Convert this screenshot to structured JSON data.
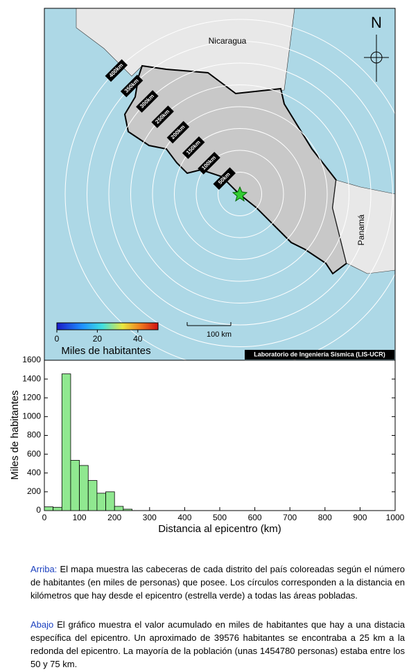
{
  "map": {
    "north_label": "N",
    "countries": [
      "Nicaragua",
      "Panamá"
    ],
    "ring_labels": [
      "50km",
      "100km",
      "150km",
      "200km",
      "250km",
      "300km",
      "350km",
      "400km"
    ],
    "scale_label": "100 km",
    "credit": "Laboratorio de Ingeniería Sísmica (LIS-UCR)",
    "colorbar": {
      "title": "Miles de habitantes",
      "range": [
        0,
        50
      ],
      "ticks": [
        0,
        20,
        40
      ]
    }
  },
  "chart_data": {
    "type": "histogram",
    "xlabel": "Distancia al epicentro (km)",
    "ylabel": "Miles de habitantes",
    "bins": [
      0,
      25,
      50,
      75,
      100,
      125,
      150,
      175,
      200,
      225,
      250
    ],
    "values": [
      39.576,
      35,
      1454.78,
      535,
      480,
      320,
      185,
      200,
      45,
      15
    ],
    "color": "#90e890",
    "xlim": [
      0,
      1000
    ],
    "xticks": [
      0,
      100,
      200,
      300,
      400,
      500,
      600,
      700,
      800,
      900,
      1000
    ],
    "ylim": [
      0,
      1600
    ],
    "yticks": [
      0,
      200,
      400,
      600,
      800,
      1000,
      1200,
      1400,
      1600
    ]
  },
  "caption": [
    {
      "lead": "Arriba:",
      "text": "El mapa muestra las cabeceras de cada distrito del país coloreadas según el número de habitantes (en miles de personas) que posee.  Los círculos corresponden a la distancia en kilómetros que hay desde el epicentro (estrella verde) a todas las áreas pobladas."
    },
    {
      "lead": "Abajo",
      "text": "El gráfico muestra el valor acumulado en miles de habitantes que hay a una distacia específica del epicentro.  Un aproximado de 39576 habitantes se encontraba a 25 km a la redonda del epicentro.  La mayoría de la población (unas 1454780 personas) estaba entre los 50 y 75 km."
    }
  ]
}
